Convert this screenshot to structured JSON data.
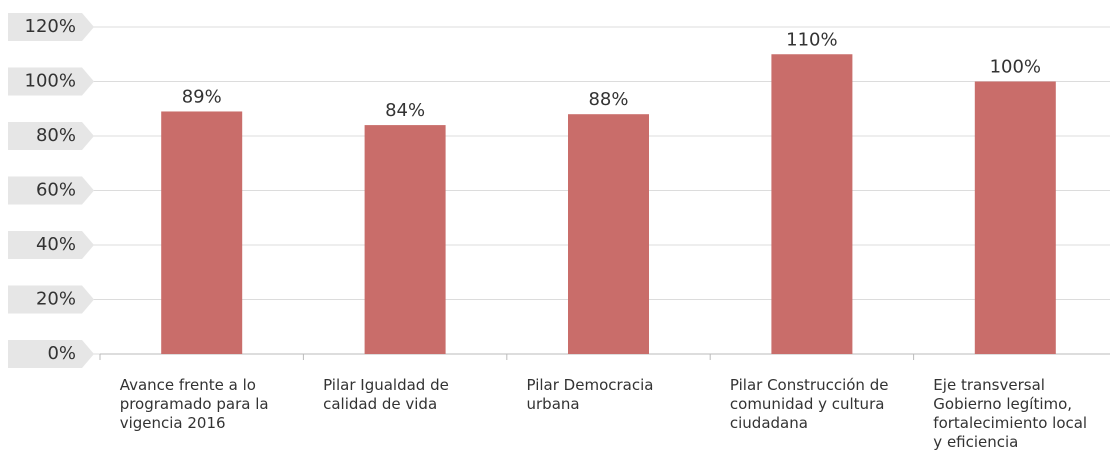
{
  "chart_data": {
    "type": "bar",
    "categories": [
      "Avance frente a lo programado para la vigencia 2016",
      "Pilar Igualdad de calidad de vida",
      "Pilar Democracia urbana",
      "Pilar Construcción de comunidad y cultura ciudadana",
      "Eje transversal Gobierno legítimo, fortalecimiento local y eficiencia"
    ],
    "values": [
      89,
      84,
      88,
      110,
      100
    ],
    "value_labels": [
      "89%",
      "84%",
      "88%",
      "110%",
      "100%"
    ],
    "color": "#c96d6a",
    "ylim": [
      0,
      120
    ],
    "yticks": [
      {
        "value": 0,
        "label": "0%"
      },
      {
        "value": 20,
        "label": "20%"
      },
      {
        "value": 40,
        "label": "40%"
      },
      {
        "value": 60,
        "label": "60%"
      },
      {
        "value": 80,
        "label": "80%"
      },
      {
        "value": 100,
        "label": "100%"
      },
      {
        "value": 120,
        "label": "120%"
      }
    ],
    "grid": true
  }
}
